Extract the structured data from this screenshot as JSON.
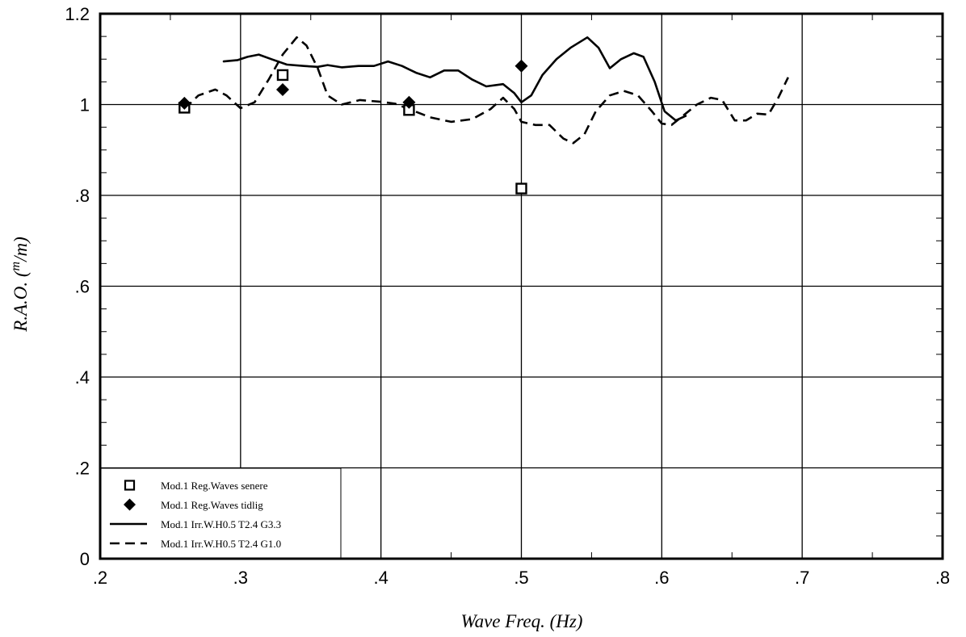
{
  "chart_data": {
    "type": "line",
    "title": "",
    "xlabel": "Wave Freq. (Hz)",
    "ylabel": {
      "main": "R.A.O. (",
      "sup": "m",
      "tail": "/m)"
    },
    "xlim": [
      0.2,
      0.8
    ],
    "ylim": [
      0,
      1.2
    ],
    "grid": true,
    "legend_position": "bottom-left",
    "x_ticks": [
      {
        "v": 0.2,
        "label": ".2"
      },
      {
        "v": 0.3,
        "label": ".3"
      },
      {
        "v": 0.4,
        "label": ".4"
      },
      {
        "v": 0.5,
        "label": ".5"
      },
      {
        "v": 0.6,
        "label": ".6"
      },
      {
        "v": 0.7,
        "label": ".7"
      },
      {
        "v": 0.8,
        "label": ".8"
      }
    ],
    "y_ticks": [
      {
        "v": 0,
        "label": "0"
      },
      {
        "v": 0.2,
        "label": ".2"
      },
      {
        "v": 0.4,
        "label": ".4"
      },
      {
        "v": 0.6,
        "label": ".6"
      },
      {
        "v": 0.8,
        "label": ".8"
      },
      {
        "v": 1.0,
        "label": "1"
      },
      {
        "v": 1.2,
        "label": "1.2"
      }
    ],
    "series": [
      {
        "name": "Mod.1 Reg.Waves senere",
        "kind": "scatter",
        "marker": "open-square",
        "points": [
          [
            0.26,
            0.993
          ],
          [
            0.33,
            1.065
          ],
          [
            0.42,
            0.988
          ],
          [
            0.5,
            0.815
          ]
        ]
      },
      {
        "name": "Mod.1 Reg.Waves tidlig",
        "kind": "scatter",
        "marker": "filled-diamond",
        "points": [
          [
            0.26,
            1.003
          ],
          [
            0.33,
            1.033
          ],
          [
            0.42,
            1.005
          ],
          [
            0.5,
            1.085
          ]
        ]
      },
      {
        "name": "Mod.1 Irr.W.H0.5 T2.4 G3.3",
        "kind": "line",
        "dash": "solid",
        "points": [
          [
            0.288,
            1.095
          ],
          [
            0.298,
            1.098
          ],
          [
            0.305,
            1.105
          ],
          [
            0.313,
            1.11
          ],
          [
            0.322,
            1.1
          ],
          [
            0.333,
            1.088
          ],
          [
            0.345,
            1.085
          ],
          [
            0.355,
            1.083
          ],
          [
            0.362,
            1.087
          ],
          [
            0.372,
            1.082
          ],
          [
            0.384,
            1.085
          ],
          [
            0.395,
            1.085
          ],
          [
            0.405,
            1.095
          ],
          [
            0.415,
            1.085
          ],
          [
            0.425,
            1.07
          ],
          [
            0.435,
            1.06
          ],
          [
            0.445,
            1.075
          ],
          [
            0.455,
            1.075
          ],
          [
            0.465,
            1.055
          ],
          [
            0.475,
            1.04
          ],
          [
            0.487,
            1.045
          ],
          [
            0.495,
            1.025
          ],
          [
            0.5,
            1.005
          ],
          [
            0.507,
            1.02
          ],
          [
            0.515,
            1.065
          ],
          [
            0.525,
            1.1
          ],
          [
            0.535,
            1.125
          ],
          [
            0.547,
            1.148
          ],
          [
            0.555,
            1.125
          ],
          [
            0.563,
            1.08
          ],
          [
            0.571,
            1.1
          ],
          [
            0.58,
            1.113
          ],
          [
            0.587,
            1.105
          ],
          [
            0.595,
            1.05
          ],
          [
            0.602,
            0.985
          ],
          [
            0.61,
            0.965
          ],
          [
            0.617,
            0.975
          ]
        ]
      },
      {
        "name": "Mod.1 Irr.W.H0.5 T2.4 G1.0",
        "kind": "line",
        "dash": "dashed",
        "points": [
          [
            0.26,
            0.99
          ],
          [
            0.27,
            1.02
          ],
          [
            0.282,
            1.033
          ],
          [
            0.29,
            1.02
          ],
          [
            0.3,
            0.992
          ],
          [
            0.31,
            1.005
          ],
          [
            0.32,
            1.055
          ],
          [
            0.33,
            1.11
          ],
          [
            0.34,
            1.148
          ],
          [
            0.347,
            1.13
          ],
          [
            0.355,
            1.08
          ],
          [
            0.362,
            1.02
          ],
          [
            0.372,
            1.0
          ],
          [
            0.385,
            1.01
          ],
          [
            0.4,
            1.006
          ],
          [
            0.41,
            1.002
          ],
          [
            0.42,
            0.99
          ],
          [
            0.435,
            0.972
          ],
          [
            0.45,
            0.962
          ],
          [
            0.465,
            0.968
          ],
          [
            0.478,
            0.99
          ],
          [
            0.487,
            1.015
          ],
          [
            0.495,
            0.99
          ],
          [
            0.5,
            0.962
          ],
          [
            0.51,
            0.955
          ],
          [
            0.52,
            0.955
          ],
          [
            0.53,
            0.925
          ],
          [
            0.537,
            0.915
          ],
          [
            0.545,
            0.935
          ],
          [
            0.553,
            0.985
          ],
          [
            0.563,
            1.02
          ],
          [
            0.573,
            1.03
          ],
          [
            0.583,
            1.02
          ],
          [
            0.593,
            0.985
          ],
          [
            0.6,
            0.958
          ],
          [
            0.607,
            0.955
          ],
          [
            0.615,
            0.975
          ],
          [
            0.625,
            1.0
          ],
          [
            0.635,
            1.015
          ],
          [
            0.643,
            1.01
          ],
          [
            0.652,
            0.965
          ],
          [
            0.66,
            0.965
          ],
          [
            0.668,
            0.98
          ],
          [
            0.676,
            0.978
          ],
          [
            0.683,
            1.015
          ],
          [
            0.69,
            1.06
          ]
        ]
      }
    ]
  }
}
